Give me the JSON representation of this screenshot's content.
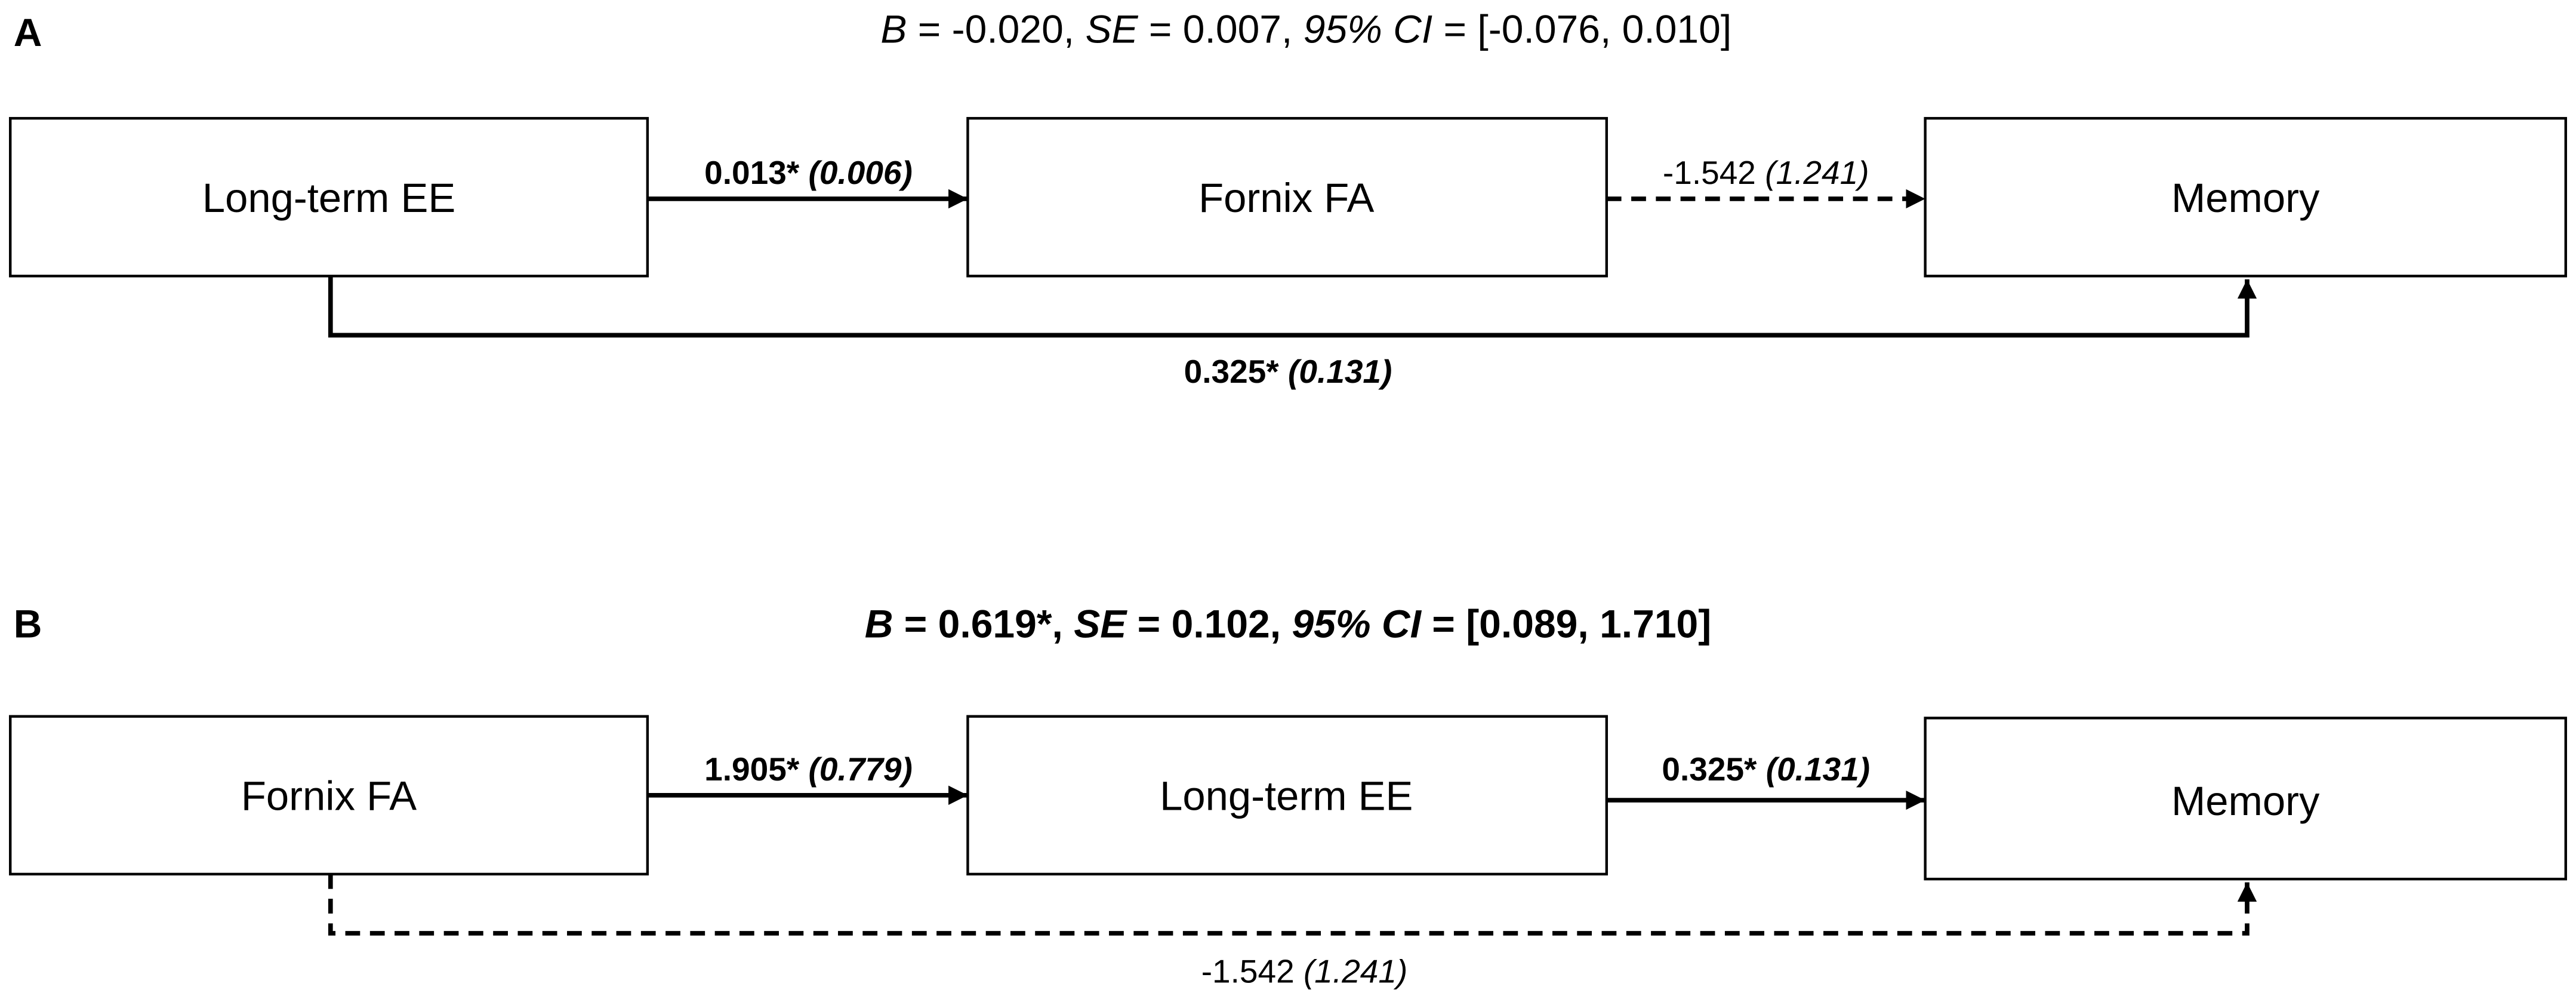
{
  "panels": [
    {
      "label": "A",
      "header": [
        {
          "symbol": "B",
          "value": "= -0.020,"
        },
        {
          "symbol": "SE",
          "value": "= 0.007,"
        },
        {
          "symbol": "95% CI",
          "value": "= [-0.076, 0.010]"
        }
      ],
      "nodes": [
        {
          "label": "Long-term EE"
        },
        {
          "label": "Fornix FA"
        },
        {
          "label": "Memory"
        }
      ],
      "edges": [
        {
          "coef": "0.013*",
          "se": "(0.006)"
        },
        {
          "coef": "-1.542",
          "se": "(1.241)"
        },
        {
          "coef": "0.325*",
          "se": "(0.131)"
        }
      ]
    },
    {
      "label": "B",
      "header": [
        {
          "symbol": "B",
          "value": "= 0.619*,"
        },
        {
          "symbol": "SE",
          "value": "= 0.102,"
        },
        {
          "symbol": "95% CI",
          "value": "= [0.089, 1.710]"
        }
      ],
      "nodes": [
        {
          "label": "Fornix FA"
        },
        {
          "label": "Long-term EE"
        },
        {
          "label": "Memory"
        }
      ],
      "edges": [
        {
          "coef": "1.905*",
          "se": "(0.779)"
        },
        {
          "coef": "0.325*",
          "se": "(0.131)"
        },
        {
          "coef": "-1.542",
          "se": "(1.241)"
        }
      ]
    }
  ]
}
